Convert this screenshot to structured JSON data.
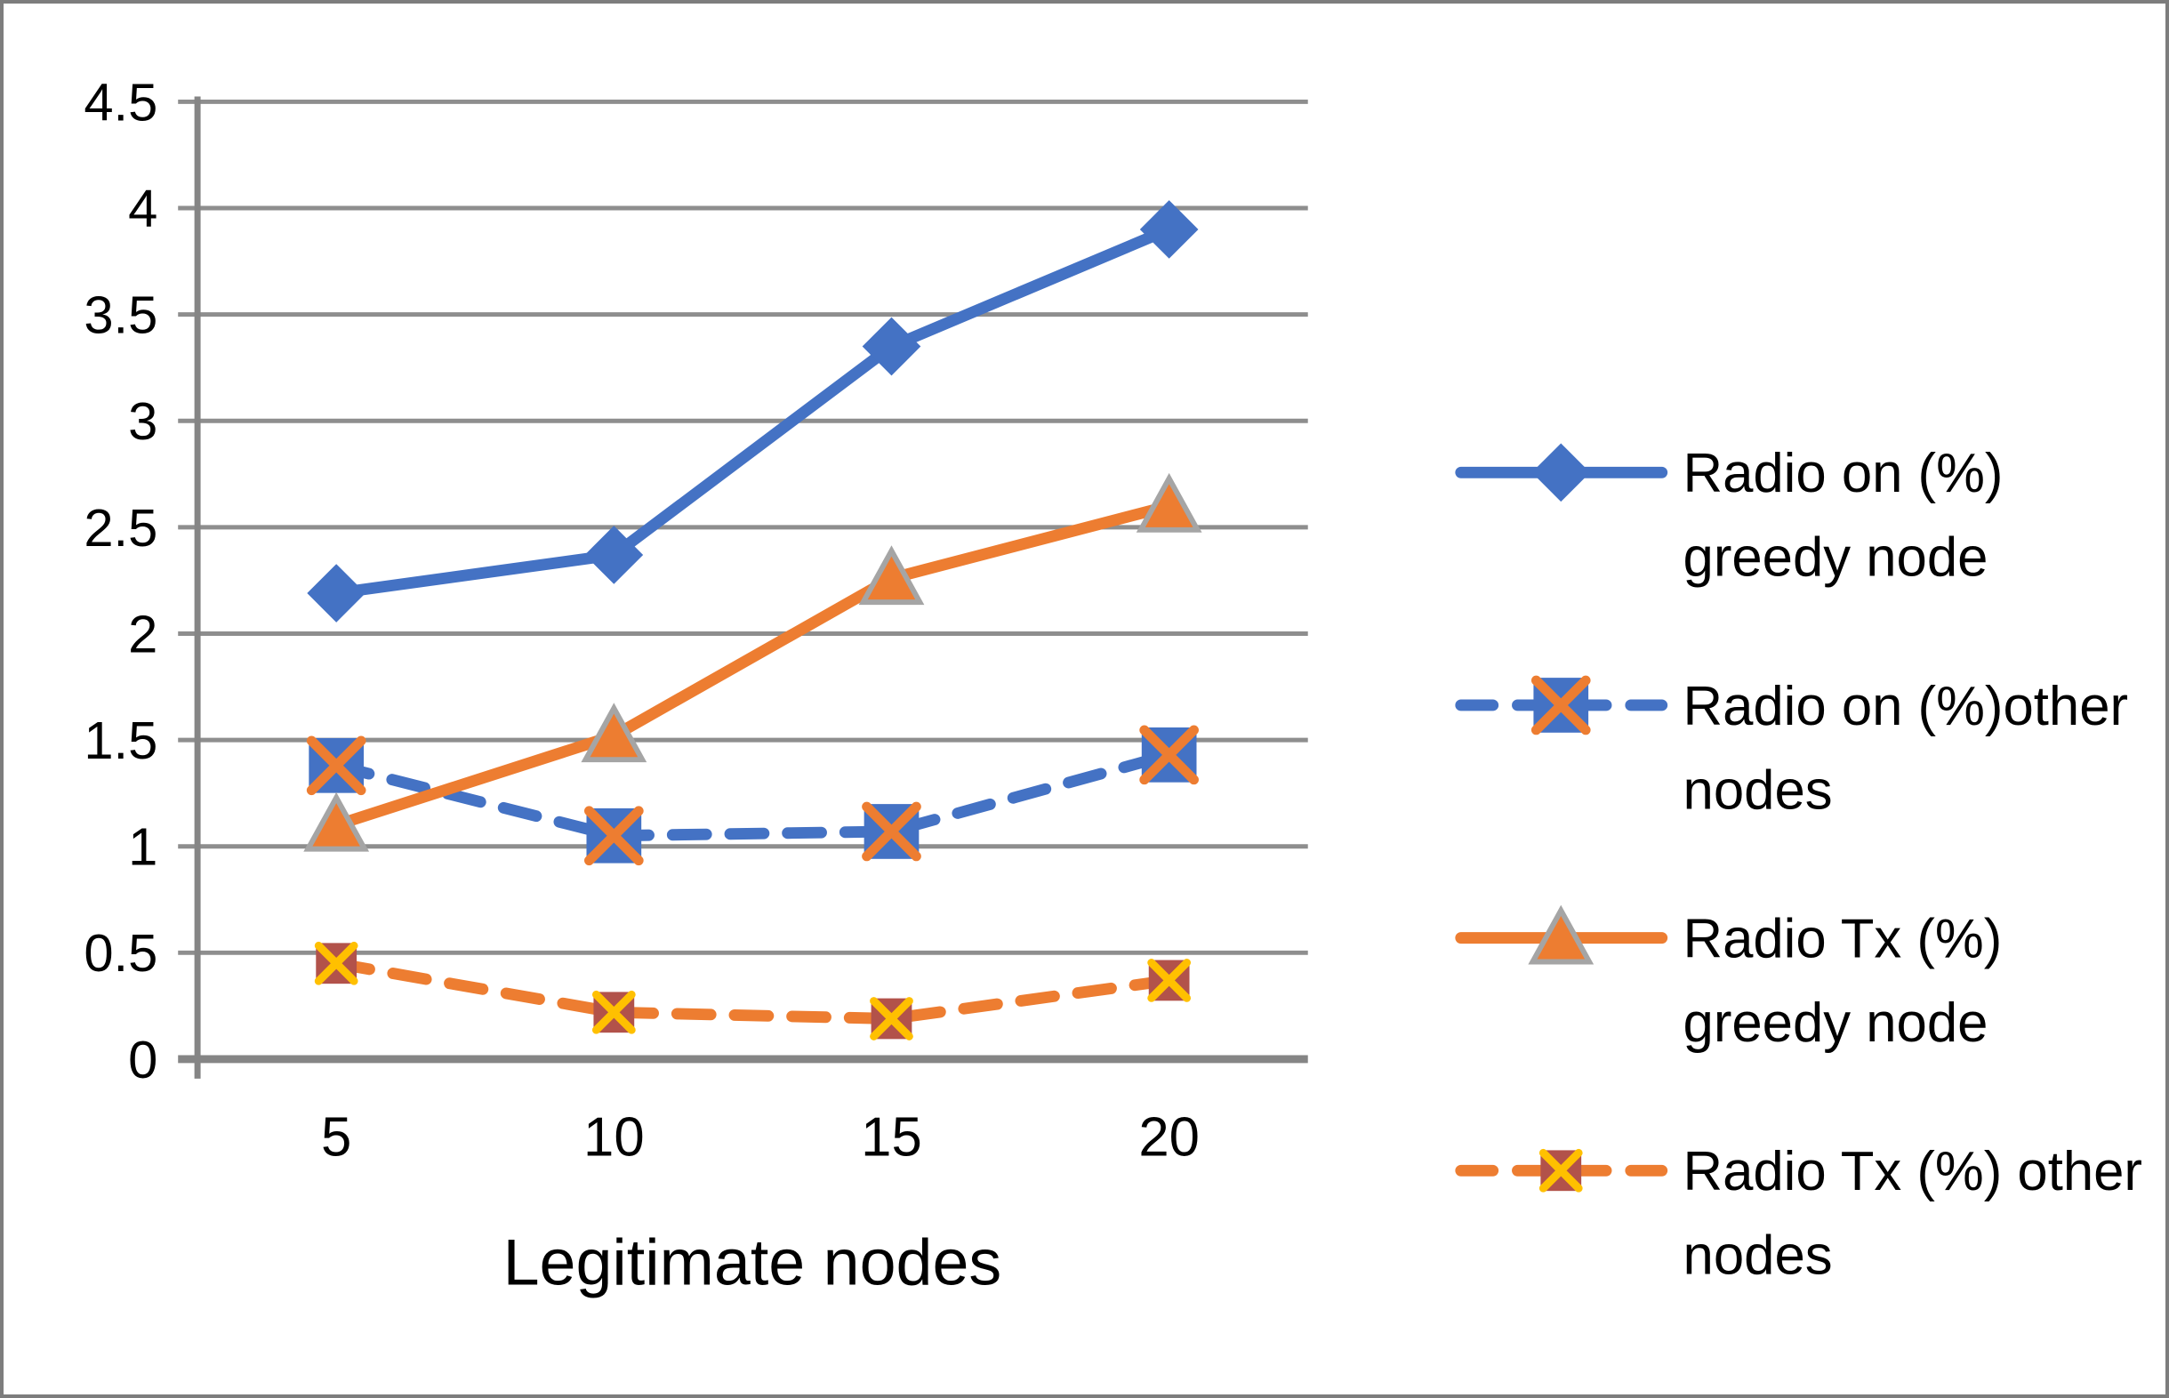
{
  "chart_data": {
    "type": "line",
    "title": "",
    "xlabel": "Legitimate nodes",
    "ylabel": "",
    "categories": [
      5,
      10,
      15,
      20
    ],
    "x_tick_labels": [
      "5",
      "10",
      "15",
      "20"
    ],
    "y_ticks": [
      0,
      0.5,
      1,
      1.5,
      2,
      2.5,
      3,
      3.5,
      4,
      4.5
    ],
    "y_tick_labels": [
      "0",
      "0.5",
      "1",
      "1.5",
      "2",
      "2.5",
      "3",
      "3.5",
      "4",
      "4.5"
    ],
    "ylim": [
      0,
      4.5
    ],
    "grid": "horizontal",
    "legend_position": "right",
    "series": [
      {
        "name": "Radio on (%) greedy node",
        "legend_lines": [
          "Radio on (%)",
          "greedy node"
        ],
        "values": [
          2.19,
          2.37,
          3.35,
          3.9
        ],
        "color": "#4472C4",
        "line_style": "solid",
        "marker": "diamond",
        "marker_fill": "#4472C4"
      },
      {
        "name": "Radio on (%)other nodes",
        "legend_lines": [
          "Radio on (%)other",
          "nodes"
        ],
        "values": [
          1.38,
          1.05,
          1.07,
          1.43
        ],
        "color": "#4472C4",
        "line_style": "dashed",
        "marker": "square-x",
        "marker_fill": "#4472C4",
        "marker_x_color": "#ED7D31"
      },
      {
        "name": "Radio Tx (%) greedy node",
        "legend_lines": [
          "Radio Tx (%)",
          "greedy node"
        ],
        "values": [
          1.1,
          1.52,
          2.26,
          2.6
        ],
        "color": "#ED7D31",
        "line_style": "solid",
        "marker": "triangle",
        "marker_fill": "#ED7D31",
        "marker_border": "#A5A5A5"
      },
      {
        "name": "Radio Tx (%) other nodes",
        "legend_lines": [
          "Radio Tx (%) other",
          "nodes"
        ],
        "values": [
          0.45,
          0.22,
          0.19,
          0.37
        ],
        "color": "#ED7D31",
        "line_style": "dashed",
        "marker": "square-x-small",
        "marker_fill": "#B2524A",
        "marker_x_color": "#FFC000"
      }
    ],
    "style": {
      "gridline_color": "#8E8E8E",
      "axis_color": "#858585",
      "text_color": "#000000",
      "background": "#FFFFFF",
      "border_color": "#7D7D7D"
    }
  }
}
